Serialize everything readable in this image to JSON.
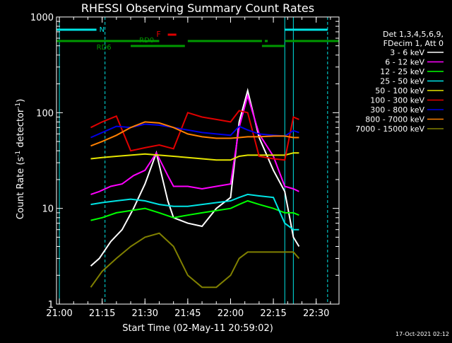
{
  "chart_data": {
    "type": "line",
    "title": "RHESSI Observing Summary Count Rates",
    "xlabel": "Start Time (02-May-11 20:59:02)",
    "ylabel": "Count Rate (s⁻¹ detector⁻¹)",
    "y_scale": "log",
    "ylim": [
      1,
      1000
    ],
    "xlim": [
      "20:59",
      "22:38"
    ],
    "x_ticks": [
      "21:00",
      "21:15",
      "21:30",
      "21:45",
      "22:00",
      "22:15",
      "22:30"
    ],
    "y_ticks": [
      "1",
      "10",
      "100",
      "1000"
    ],
    "legend_header": [
      "Det 1,3,4,5,6,9,",
      "FDecim 1, Att 0"
    ],
    "legend_position": "right",
    "footer_date": "17-Oct-2021 02:12",
    "flags": [
      {
        "label": "N",
        "color": "#00e5e5"
      },
      {
        "label": "F",
        "color": "#e00000"
      },
      {
        "label": "RD0",
        "color": "#009900"
      },
      {
        "label": "RD6",
        "color": "#009900"
      }
    ],
    "series": [
      {
        "name": "3 - 6 keV",
        "color": "#ffffff",
        "x": [
          "21:11",
          "21:14",
          "21:18",
          "21:22",
          "21:26",
          "21:30",
          "21:34",
          "21:38",
          "21:40",
          "21:45",
          "21:50",
          "21:55",
          "22:00",
          "22:03",
          "22:06",
          "22:10",
          "22:15",
          "22:19",
          "22:22",
          "22:24"
        ],
        "values": [
          2.5,
          3,
          4.5,
          6,
          10,
          18,
          38,
          12,
          8,
          7,
          6.5,
          10,
          13,
          80,
          170,
          55,
          25,
          15,
          5,
          4
        ]
      },
      {
        "name": "6 - 12 keV",
        "color": "#ff00ff",
        "x": [
          "21:11",
          "21:14",
          "21:18",
          "21:22",
          "21:26",
          "21:30",
          "21:34",
          "21:38",
          "21:40",
          "21:45",
          "21:50",
          "21:55",
          "22:00",
          "22:03",
          "22:06",
          "22:10",
          "22:15",
          "22:19",
          "22:22",
          "22:24"
        ],
        "values": [
          14,
          15,
          17,
          18,
          22,
          25,
          38,
          22,
          17,
          17,
          16,
          17,
          18,
          70,
          150,
          60,
          35,
          17,
          16,
          15
        ]
      },
      {
        "name": "12 - 25 keV",
        "color": "#00ff00",
        "x": [
          "21:11",
          "21:15",
          "21:20",
          "21:25",
          "21:30",
          "21:35",
          "21:40",
          "21:45",
          "21:50",
          "21:55",
          "22:00",
          "22:03",
          "22:06",
          "22:10",
          "22:15",
          "22:19",
          "22:22",
          "22:24"
        ],
        "values": [
          7.5,
          8,
          9,
          9.5,
          10,
          9,
          8,
          8.5,
          9,
          9.5,
          10,
          11,
          12,
          11,
          10,
          9,
          9,
          8.5
        ]
      },
      {
        "name": "25 - 50 keV",
        "color": "#00e5e5",
        "x": [
          "21:11",
          "21:15",
          "21:20",
          "21:25",
          "21:30",
          "21:35",
          "21:40",
          "21:45",
          "21:50",
          "21:55",
          "22:00",
          "22:03",
          "22:06",
          "22:10",
          "22:15",
          "22:19",
          "22:22",
          "22:24"
        ],
        "values": [
          11,
          11.5,
          12,
          12.5,
          12,
          11,
          10.5,
          10.5,
          11,
          11.5,
          12,
          13,
          14,
          13.5,
          13,
          7,
          6,
          6
        ]
      },
      {
        "name": "50 - 100 keV",
        "color": "#e5e500",
        "x": [
          "21:11",
          "21:15",
          "21:20",
          "21:25",
          "21:30",
          "21:35",
          "21:40",
          "21:45",
          "21:50",
          "21:55",
          "22:00",
          "22:03",
          "22:06",
          "22:10",
          "22:15",
          "22:19",
          "22:22",
          "22:24"
        ],
        "values": [
          33,
          34,
          35,
          36,
          37,
          36,
          35,
          34,
          33,
          32,
          32,
          35,
          36,
          36,
          36,
          36,
          38,
          38
        ]
      },
      {
        "name": "100 - 300 keV",
        "color": "#e00000",
        "x": [
          "21:11",
          "21:15",
          "21:20",
          "21:25",
          "21:30",
          "21:35",
          "21:40",
          "21:45",
          "21:50",
          "21:55",
          "22:00",
          "22:03",
          "22:06",
          "22:10",
          "22:15",
          "22:19",
          "22:22",
          "22:24"
        ],
        "values": [
          70,
          80,
          92,
          40,
          43,
          46,
          42,
          100,
          90,
          85,
          80,
          105,
          100,
          35,
          33,
          32,
          90,
          85
        ]
      },
      {
        "name": "300 - 800 keV",
        "color": "#0000e6",
        "x": [
          "21:11",
          "21:15",
          "21:20",
          "21:25",
          "21:30",
          "21:35",
          "21:40",
          "21:45",
          "21:50",
          "21:55",
          "22:00",
          "22:03",
          "22:06",
          "22:10",
          "22:15",
          "22:19",
          "22:22",
          "22:24"
        ],
        "values": [
          55,
          62,
          72,
          70,
          76,
          74,
          70,
          66,
          62,
          60,
          58,
          72,
          66,
          60,
          58,
          57,
          65,
          62
        ]
      },
      {
        "name": "800 - 7000 keV",
        "color": "#ff8000",
        "x": [
          "21:11",
          "21:15",
          "21:20",
          "21:25",
          "21:30",
          "21:35",
          "21:40",
          "21:45",
          "21:50",
          "21:55",
          "22:00",
          "22:03",
          "22:06",
          "22:10",
          "22:15",
          "22:19",
          "22:22",
          "22:24"
        ],
        "values": [
          45,
          50,
          58,
          70,
          80,
          78,
          70,
          60,
          56,
          54,
          54,
          55,
          56,
          56,
          57,
          57,
          55,
          55
        ]
      },
      {
        "name": "7000 - 15000 keV",
        "color": "#808000",
        "x": [
          "21:11",
          "21:15",
          "21:20",
          "21:25",
          "21:30",
          "21:35",
          "21:40",
          "21:45",
          "21:50",
          "21:55",
          "22:00",
          "22:03",
          "22:06",
          "22:10",
          "22:15",
          "22:19",
          "22:22",
          "22:24"
        ],
        "values": [
          1.5,
          2.2,
          3,
          4,
          5,
          5.5,
          4,
          2,
          1.5,
          1.5,
          2,
          3,
          3.5,
          3.5,
          3.5,
          3.5,
          3.5,
          3
        ]
      }
    ]
  }
}
